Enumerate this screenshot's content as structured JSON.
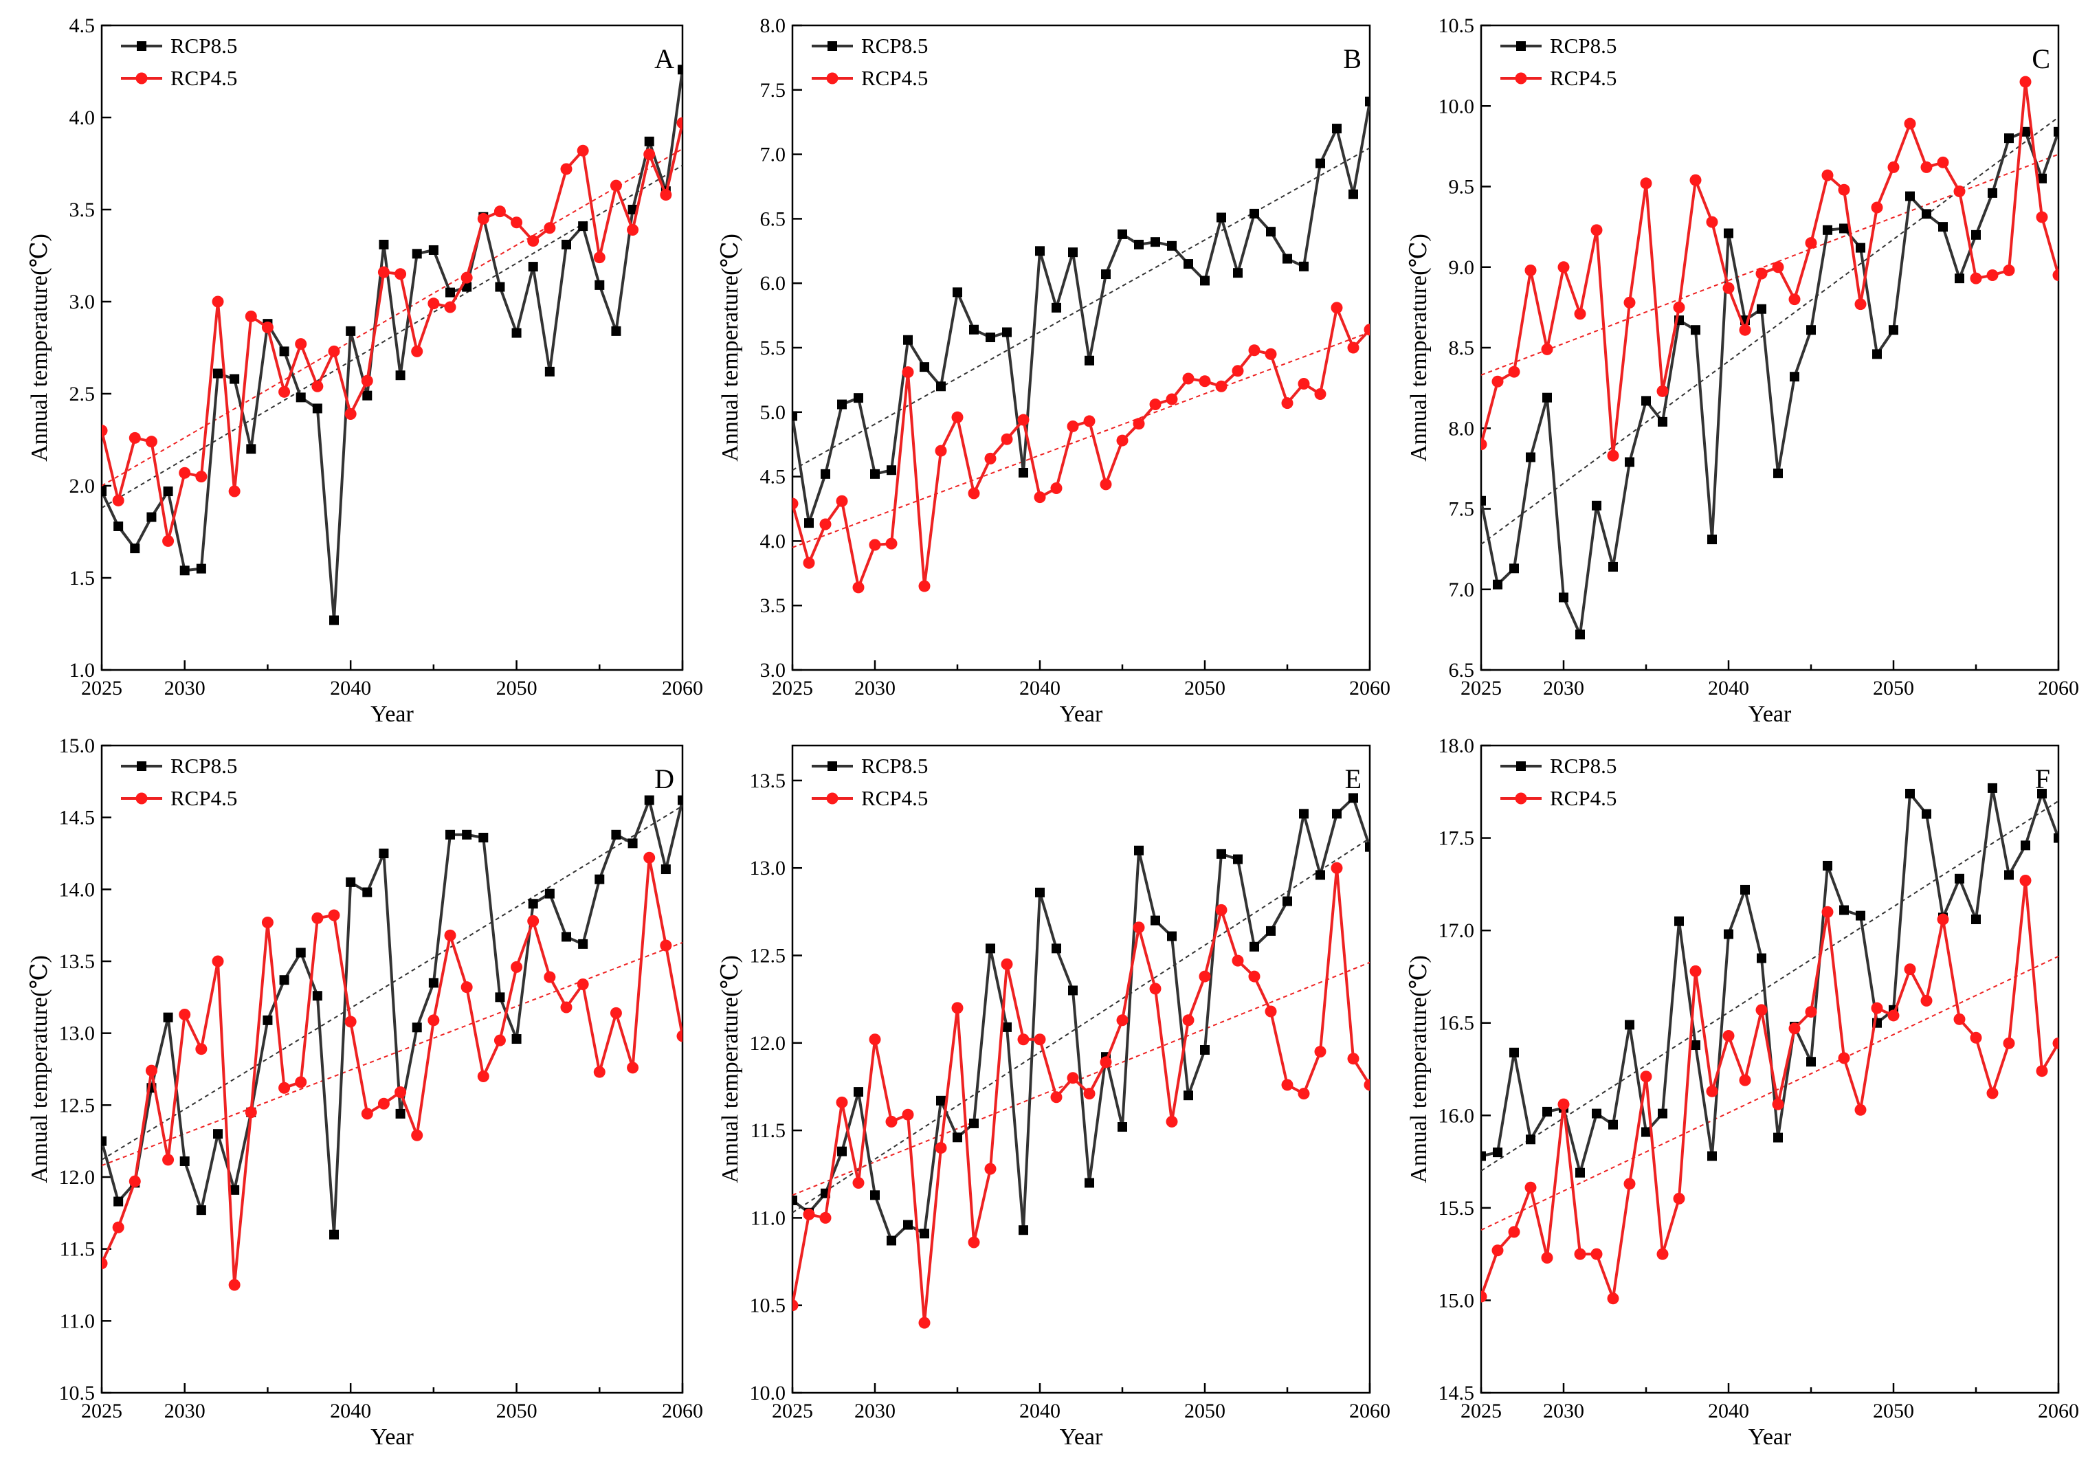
{
  "figure": {
    "background": "#ffffff"
  },
  "colors": {
    "rcp85": "#333333",
    "rcp45": "#ee2222",
    "trend85": "#333333",
    "trend45": "#ee2222"
  },
  "chart_data": [
    {
      "panel": "A",
      "type": "line",
      "xlabel": "Year",
      "ylabel": "Annual temperature(℃)",
      "xlim": [
        2025,
        2060
      ],
      "xticks": [
        2025,
        2030,
        2040,
        2050,
        2060
      ],
      "ylim": [
        1.0,
        4.5
      ],
      "yticks": [
        "1.0",
        "1.5",
        "2.0",
        "2.5",
        "3.0",
        "3.5",
        "4.0",
        "4.5"
      ],
      "x": [
        2025,
        2026,
        2027,
        2028,
        2029,
        2030,
        2031,
        2032,
        2033,
        2034,
        2035,
        2036,
        2037,
        2038,
        2039,
        2040,
        2041,
        2042,
        2043,
        2044,
        2045,
        2046,
        2047,
        2048,
        2049,
        2050,
        2051,
        2052,
        2053,
        2054,
        2055,
        2056,
        2057,
        2058,
        2059,
        2060
      ],
      "series": [
        {
          "name": "RCP8.5",
          "marker": "square",
          "values": [
            1.97,
            1.78,
            1.66,
            1.83,
            1.97,
            1.54,
            1.55,
            2.61,
            2.58,
            2.2,
            2.88,
            2.73,
            2.48,
            2.42,
            1.27,
            2.84,
            2.49,
            3.31,
            2.6,
            3.26,
            3.28,
            3.05,
            3.08,
            3.46,
            3.08,
            2.83,
            3.19,
            2.62,
            3.31,
            3.41,
            3.09,
            2.84,
            3.5,
            3.87,
            3.6,
            4.26
          ],
          "trend": [
            1.88,
            3.74
          ]
        },
        {
          "name": "RCP4.5",
          "marker": "circle",
          "values": [
            2.3,
            1.92,
            2.26,
            2.24,
            1.7,
            2.07,
            2.05,
            3.0,
            1.97,
            2.92,
            2.86,
            2.51,
            2.77,
            2.54,
            2.73,
            2.39,
            2.57,
            3.16,
            3.15,
            2.73,
            2.99,
            2.97,
            3.13,
            3.45,
            3.49,
            3.43,
            3.33,
            3.4,
            3.72,
            3.82,
            3.24,
            3.63,
            3.39,
            3.8,
            3.58,
            3.97
          ],
          "trend": [
            2.0,
            3.83
          ]
        }
      ],
      "legend": "top-left"
    },
    {
      "panel": "B",
      "type": "line",
      "xlabel": "Year",
      "ylabel": "Annual temperature(℃)",
      "xlim": [
        2025,
        2060
      ],
      "xticks": [
        2025,
        2030,
        2040,
        2050,
        2060
      ],
      "ylim": [
        3.0,
        8.0
      ],
      "yticks": [
        "3.0",
        "3.5",
        "4.0",
        "4.5",
        "5.0",
        "5.5",
        "6.0",
        "6.5",
        "7.0",
        "7.5",
        "8.0"
      ],
      "x": [
        2025,
        2026,
        2027,
        2028,
        2029,
        2030,
        2031,
        2032,
        2033,
        2034,
        2035,
        2036,
        2037,
        2038,
        2039,
        2040,
        2041,
        2042,
        2043,
        2044,
        2045,
        2046,
        2047,
        2048,
        2049,
        2050,
        2051,
        2052,
        2053,
        2054,
        2055,
        2056,
        2057,
        2058,
        2059,
        2060
      ],
      "series": [
        {
          "name": "RCP8.5",
          "marker": "square",
          "values": [
            4.97,
            4.14,
            4.52,
            5.06,
            5.11,
            4.52,
            4.55,
            5.56,
            5.35,
            5.2,
            5.93,
            5.64,
            5.58,
            5.62,
            4.53,
            6.25,
            5.81,
            6.24,
            5.4,
            6.07,
            6.38,
            6.3,
            6.32,
            6.29,
            6.15,
            6.02,
            6.51,
            6.08,
            6.54,
            6.4,
            6.19,
            6.13,
            6.93,
            7.2,
            6.69,
            7.41
          ],
          "trend": [
            4.55,
            7.05
          ]
        },
        {
          "name": "RCP4.5",
          "marker": "circle",
          "values": [
            4.29,
            3.83,
            4.13,
            4.31,
            3.64,
            3.97,
            3.98,
            5.31,
            3.65,
            4.7,
            4.96,
            4.37,
            4.64,
            4.79,
            4.94,
            4.34,
            4.41,
            4.89,
            4.93,
            4.44,
            4.78,
            4.91,
            5.06,
            5.1,
            5.26,
            5.24,
            5.2,
            5.32,
            5.48,
            5.45,
            5.07,
            5.22,
            5.14,
            5.81,
            5.5,
            5.64
          ],
          "trend": [
            3.95,
            5.62
          ]
        }
      ],
      "legend": "top-left"
    },
    {
      "panel": "C",
      "type": "line",
      "xlabel": "Year",
      "ylabel": "Annual temperature(℃)",
      "xlim": [
        2025,
        2060
      ],
      "xticks": [
        2025,
        2030,
        2040,
        2050,
        2060
      ],
      "ylim": [
        6.5,
        10.5
      ],
      "yticks": [
        "6.5",
        "7.0",
        "7.5",
        "8.0",
        "8.5",
        "9.0",
        "9.5",
        "10.0",
        "10.5"
      ],
      "x": [
        2025,
        2026,
        2027,
        2028,
        2029,
        2030,
        2031,
        2032,
        2033,
        2034,
        2035,
        2036,
        2037,
        2038,
        2039,
        2040,
        2041,
        2042,
        2043,
        2044,
        2045,
        2046,
        2047,
        2048,
        2049,
        2050,
        2051,
        2052,
        2053,
        2054,
        2055,
        2056,
        2057,
        2058,
        2059,
        2060
      ],
      "series": [
        {
          "name": "RCP8.5",
          "marker": "square",
          "values": [
            7.55,
            7.03,
            7.13,
            7.82,
            8.19,
            6.95,
            6.72,
            7.52,
            7.14,
            7.79,
            8.17,
            8.04,
            8.67,
            8.61,
            7.31,
            9.21,
            8.67,
            8.74,
            7.72,
            8.32,
            8.61,
            9.23,
            9.24,
            9.12,
            8.46,
            8.61,
            9.44,
            9.33,
            9.25,
            8.93,
            9.2,
            9.46,
            9.8,
            9.84,
            9.55,
            9.84
          ],
          "trend": [
            7.28,
            9.93
          ]
        },
        {
          "name": "RCP4.5",
          "marker": "circle",
          "values": [
            7.9,
            8.29,
            8.35,
            8.98,
            8.49,
            9.0,
            8.71,
            9.23,
            7.83,
            8.78,
            9.52,
            8.23,
            8.75,
            9.54,
            9.28,
            8.87,
            8.61,
            8.96,
            9.0,
            8.8,
            9.15,
            9.57,
            9.48,
            8.77,
            9.37,
            9.62,
            9.89,
            9.62,
            9.65,
            9.47,
            8.93,
            8.95,
            8.98,
            10.15,
            9.31,
            8.95
          ],
          "trend": [
            8.33,
            9.7
          ]
        }
      ],
      "legend": "top-left"
    },
    {
      "panel": "D",
      "type": "line",
      "xlabel": "Year",
      "ylabel": "Annual temperature(℃)",
      "xlim": [
        2025,
        2060
      ],
      "xticks": [
        2025,
        2030,
        2040,
        2050,
        2060
      ],
      "ylim": [
        10.5,
        15.0
      ],
      "yticks": [
        "10.5",
        "11.0",
        "11.5",
        "12.0",
        "12.5",
        "13.0",
        "13.5",
        "14.0",
        "14.5",
        "15.0"
      ],
      "x": [
        2025,
        2026,
        2027,
        2028,
        2029,
        2030,
        2031,
        2032,
        2033,
        2034,
        2035,
        2036,
        2037,
        2038,
        2039,
        2040,
        2041,
        2042,
        2043,
        2044,
        2045,
        2046,
        2047,
        2048,
        2049,
        2050,
        2051,
        2052,
        2053,
        2054,
        2055,
        2056,
        2057,
        2058,
        2059,
        2060
      ],
      "series": [
        {
          "name": "RCP8.5",
          "marker": "square",
          "values": [
            12.25,
            11.83,
            11.96,
            12.62,
            13.11,
            12.11,
            11.77,
            12.3,
            11.91,
            12.45,
            13.09,
            13.37,
            13.56,
            13.26,
            11.6,
            14.05,
            13.98,
            14.25,
            12.44,
            13.04,
            13.35,
            14.38,
            14.38,
            14.36,
            13.25,
            12.96,
            13.9,
            13.97,
            13.67,
            13.62,
            14.07,
            14.38,
            14.32,
            14.62,
            14.14,
            14.62
          ],
          "trend": [
            12.12,
            14.58
          ]
        },
        {
          "name": "RCP4.5",
          "marker": "circle",
          "values": [
            11.4,
            11.65,
            11.97,
            12.74,
            12.12,
            13.13,
            12.89,
            13.5,
            11.25,
            12.45,
            13.77,
            12.62,
            12.66,
            13.8,
            13.82,
            13.08,
            12.44,
            12.51,
            12.59,
            12.29,
            13.09,
            13.68,
            13.32,
            12.7,
            12.95,
            13.46,
            13.78,
            13.39,
            13.18,
            13.34,
            12.73,
            13.14,
            12.76,
            14.22,
            13.61,
            12.98
          ],
          "trend": [
            12.08,
            13.63
          ]
        }
      ],
      "legend": "top-left"
    },
    {
      "panel": "E",
      "type": "line",
      "xlabel": "Year",
      "ylabel": "Annual temperature(℃)",
      "xlim": [
        2025,
        2060
      ],
      "xticks": [
        2025,
        2030,
        2040,
        2050,
        2060
      ],
      "ylim": [
        10.0,
        13.7
      ],
      "yticks": [
        "10.0",
        "10.5",
        "11.0",
        "11.5",
        "12.0",
        "12.5",
        "13.0",
        "13.5"
      ],
      "x": [
        2025,
        2026,
        2027,
        2028,
        2029,
        2030,
        2031,
        2032,
        2033,
        2034,
        2035,
        2036,
        2037,
        2038,
        2039,
        2040,
        2041,
        2042,
        2043,
        2044,
        2045,
        2046,
        2047,
        2048,
        2049,
        2050,
        2051,
        2052,
        2053,
        2054,
        2055,
        2056,
        2057,
        2058,
        2059,
        2060
      ],
      "series": [
        {
          "name": "RCP8.5",
          "marker": "square",
          "values": [
            11.1,
            11.03,
            11.14,
            11.38,
            11.72,
            11.13,
            10.87,
            10.96,
            10.91,
            11.67,
            11.46,
            11.54,
            12.54,
            12.09,
            10.93,
            12.86,
            12.54,
            12.3,
            11.2,
            11.92,
            11.52,
            13.1,
            12.7,
            12.61,
            11.7,
            11.96,
            13.08,
            13.05,
            12.55,
            12.64,
            12.81,
            13.31,
            12.96,
            13.31,
            13.4,
            13.12
          ],
          "trend": [
            11.03,
            13.17
          ]
        },
        {
          "name": "RCP4.5",
          "marker": "circle",
          "values": [
            10.5,
            11.02,
            11.0,
            11.66,
            11.2,
            12.02,
            11.55,
            11.59,
            10.4,
            11.4,
            12.2,
            10.86,
            11.28,
            12.45,
            12.02,
            12.02,
            11.69,
            11.8,
            11.71,
            11.89,
            12.13,
            12.66,
            12.31,
            11.55,
            12.13,
            12.38,
            12.76,
            12.47,
            12.38,
            12.18,
            11.76,
            11.71,
            11.95,
            13.0,
            11.91,
            11.76
          ],
          "trend": [
            11.13,
            12.46
          ]
        }
      ],
      "legend": "top-left"
    },
    {
      "panel": "F",
      "type": "line",
      "xlabel": "Year",
      "ylabel": "Annual temperature(℃)",
      "xlim": [
        2025,
        2060
      ],
      "xticks": [
        2025,
        2030,
        2040,
        2050,
        2060
      ],
      "ylim": [
        14.5,
        18.0
      ],
      "yticks": [
        "14.5",
        "15.0",
        "15.5",
        "16.0",
        "16.5",
        "17.0",
        "17.5",
        "18.0"
      ],
      "x": [
        2025,
        2026,
        2027,
        2028,
        2029,
        2030,
        2031,
        2032,
        2033,
        2034,
        2035,
        2036,
        2037,
        2038,
        2039,
        2040,
        2041,
        2042,
        2043,
        2044,
        2045,
        2046,
        2047,
        2048,
        2049,
        2050,
        2051,
        2052,
        2053,
        2054,
        2055,
        2056,
        2057,
        2058,
        2059,
        2060
      ],
      "series": [
        {
          "name": "RCP8.5",
          "marker": "square",
          "values": [
            15.78,
            15.8,
            16.34,
            15.87,
            16.02,
            16.04,
            15.69,
            16.01,
            15.95,
            16.49,
            15.91,
            16.01,
            17.05,
            16.38,
            15.78,
            16.98,
            17.22,
            16.85,
            15.88,
            16.48,
            16.29,
            17.35,
            17.11,
            17.08,
            16.5,
            16.57,
            17.74,
            17.63,
            17.07,
            17.28,
            17.06,
            17.77,
            17.3,
            17.46,
            17.74,
            17.5
          ],
          "trend": [
            15.7,
            17.7
          ]
        },
        {
          "name": "RCP4.5",
          "marker": "circle",
          "values": [
            15.02,
            15.27,
            15.37,
            15.61,
            15.23,
            16.06,
            15.25,
            15.25,
            15.01,
            15.63,
            16.21,
            15.25,
            15.55,
            16.78,
            16.13,
            16.43,
            16.19,
            16.57,
            16.06,
            16.47,
            16.56,
            17.1,
            16.31,
            16.03,
            16.58,
            16.54,
            16.79,
            16.62,
            17.06,
            16.52,
            16.42,
            16.12,
            16.39,
            17.27,
            16.24,
            16.39
          ],
          "trend": [
            15.38,
            16.86
          ]
        }
      ],
      "legend": "top-left"
    }
  ]
}
